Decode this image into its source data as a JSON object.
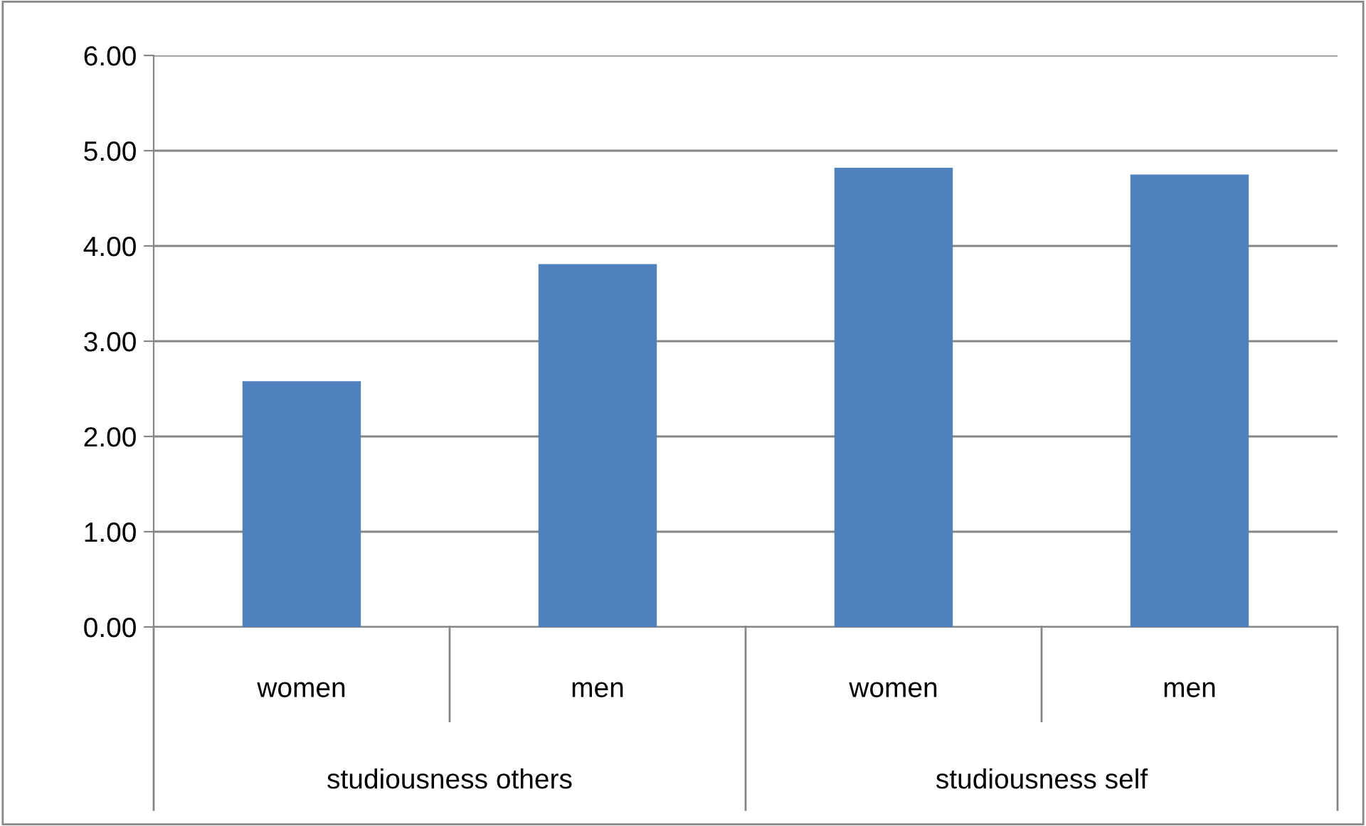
{
  "chart_data": {
    "type": "bar",
    "categories": [
      "women",
      "men",
      "women",
      "men"
    ],
    "values": [
      2.58,
      3.81,
      4.82,
      4.75
    ],
    "color": "#4f81bd",
    "ylim": [
      0,
      6
    ],
    "yticks": [
      {
        "value": 0,
        "label": "0.00"
      },
      {
        "value": 1,
        "label": "1.00"
      },
      {
        "value": 2,
        "label": "2.00"
      },
      {
        "value": 3,
        "label": "3.00"
      },
      {
        "value": 4,
        "label": "4.00"
      },
      {
        "value": 5,
        "label": "5.00"
      },
      {
        "value": 6,
        "label": "6.00"
      }
    ],
    "grid": "y",
    "annotations": [
      "studiousness others",
      "studiousness self"
    ]
  }
}
